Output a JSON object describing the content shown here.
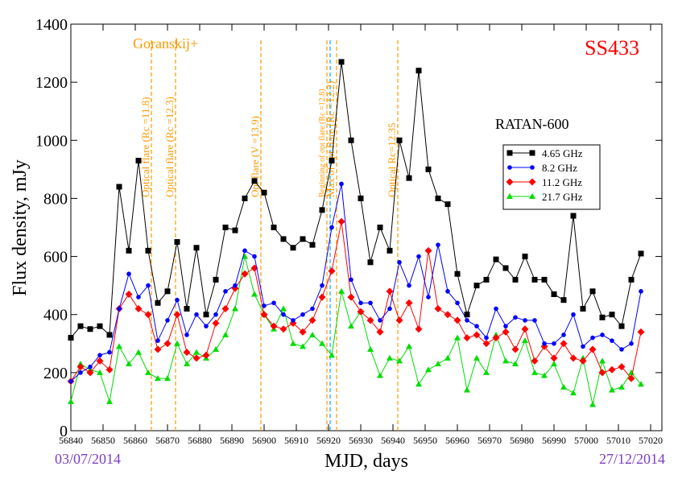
{
  "chart_data": {
    "type": "line",
    "title": "SS433",
    "source_label": "Goranskij+",
    "instrument_label": "RATAN-600",
    "xlabel": "MJD, days",
    "ylabel": "Flux density, mJy",
    "start_date": "03/07/2014",
    "end_date": "27/12/2014",
    "xlim": [
      56840,
      57023.5
    ],
    "ylim": [
      0,
      1400
    ],
    "xticks": [
      56840,
      56850,
      56860,
      56870,
      56880,
      56890,
      56900,
      56910,
      56920,
      56930,
      56940,
      56950,
      56960,
      56970,
      56980,
      56990,
      57000,
      57010,
      57020
    ],
    "yticks": [
      0,
      200,
      400,
      600,
      800,
      1000,
      1200,
      1400
    ],
    "x": [
      56840,
      56843,
      56846,
      56849,
      56852,
      56855,
      56858,
      56861,
      56864,
      56867,
      56870,
      56873,
      56876,
      56879,
      56882,
      56885,
      56888,
      56891,
      56894,
      56897,
      56900,
      56903,
      56906,
      56909,
      56912,
      56915,
      56918,
      56921,
      56924,
      56927,
      56930,
      56933,
      56936,
      56939,
      56942,
      56945,
      56948,
      56951,
      56954,
      56957,
      56960,
      56963,
      56966,
      56969,
      56972,
      56975,
      56978,
      56981,
      56984,
      56987,
      56990,
      56993,
      56996,
      56999,
      57002,
      57005,
      57008,
      57011,
      57014,
      57017
    ],
    "series": [
      {
        "name": "4.65 GHz",
        "color": "#000000",
        "marker": "square",
        "values": [
          320,
          360,
          350,
          360,
          330,
          840,
          620,
          930,
          620,
          440,
          480,
          650,
          420,
          630,
          400,
          520,
          700,
          690,
          800,
          860,
          820,
          700,
          660,
          630,
          660,
          640,
          760,
          930,
          1270,
          1000,
          800,
          580,
          700,
          620,
          1000,
          870,
          1240,
          900,
          800,
          780,
          540,
          400,
          500,
          520,
          590,
          560,
          520,
          600,
          520,
          520,
          470,
          450,
          740,
          420,
          480,
          390,
          400,
          360,
          520,
          610
        ]
      },
      {
        "name": "8.2 GHz",
        "color": "#0000ff",
        "marker": "circle",
        "values": [
          170,
          200,
          220,
          260,
          270,
          420,
          540,
          460,
          500,
          310,
          380,
          450,
          330,
          400,
          360,
          400,
          480,
          500,
          620,
          600,
          430,
          440,
          400,
          380,
          400,
          420,
          500,
          700,
          850,
          520,
          440,
          440,
          380,
          420,
          580,
          500,
          600,
          460,
          640,
          480,
          440,
          380,
          360,
          320,
          420,
          360,
          390,
          380,
          380,
          300,
          300,
          330,
          400,
          290,
          320,
          330,
          310,
          280,
          300,
          480
        ]
      },
      {
        "name": "11.2 GHz",
        "color": "#ff0000",
        "marker": "diamond",
        "values": [
          170,
          220,
          200,
          240,
          210,
          420,
          470,
          420,
          400,
          280,
          300,
          400,
          270,
          250,
          260,
          370,
          420,
          490,
          540,
          560,
          400,
          360,
          350,
          370,
          340,
          380,
          460,
          550,
          720,
          460,
          410,
          380,
          340,
          480,
          380,
          440,
          350,
          620,
          420,
          400,
          380,
          320,
          330,
          300,
          320,
          340,
          280,
          350,
          240,
          290,
          250,
          300,
          250,
          240,
          280,
          200,
          210,
          220,
          180,
          340
        ]
      },
      {
        "name": "21.7 GHz",
        "color": "#00dd00",
        "marker": "triangle",
        "values": [
          100,
          230,
          210,
          200,
          100,
          290,
          230,
          270,
          200,
          180,
          180,
          300,
          230,
          270,
          250,
          280,
          330,
          420,
          600,
          470,
          400,
          350,
          420,
          300,
          290,
          330,
          300,
          260,
          480,
          360,
          410,
          280,
          190,
          250,
          240,
          290,
          160,
          210,
          230,
          250,
          320,
          140,
          250,
          200,
          330,
          240,
          230,
          310,
          200,
          190,
          230,
          150,
          130,
          250,
          90,
          240,
          140,
          150,
          200,
          160
        ]
      }
    ],
    "annotations": [
      {
        "x": 56865,
        "label": "Optical flare (Rc =11.8)",
        "color": "#ff9900"
      },
      {
        "x": 56872.5,
        "label": "Optical flare (Rc =12.3)",
        "color": "#ff9900"
      },
      {
        "x": 56899,
        "label": "Opt flare (V =13.9)",
        "color": "#ff9900"
      },
      {
        "x": 56919.5,
        "label": "Beginning of opt flare (Rc =12.8)",
        "color": "#ff9900"
      },
      {
        "x": 56920.5,
        "color": "#00aaff"
      },
      {
        "x": 56922.5,
        "label": "Max of opt flare (Rc =12.2)",
        "color": "#ff9900"
      },
      {
        "x": 56941.5,
        "label": "Optical Rc=12.35",
        "color": "#ff9900"
      }
    ],
    "legend": "upper right"
  }
}
